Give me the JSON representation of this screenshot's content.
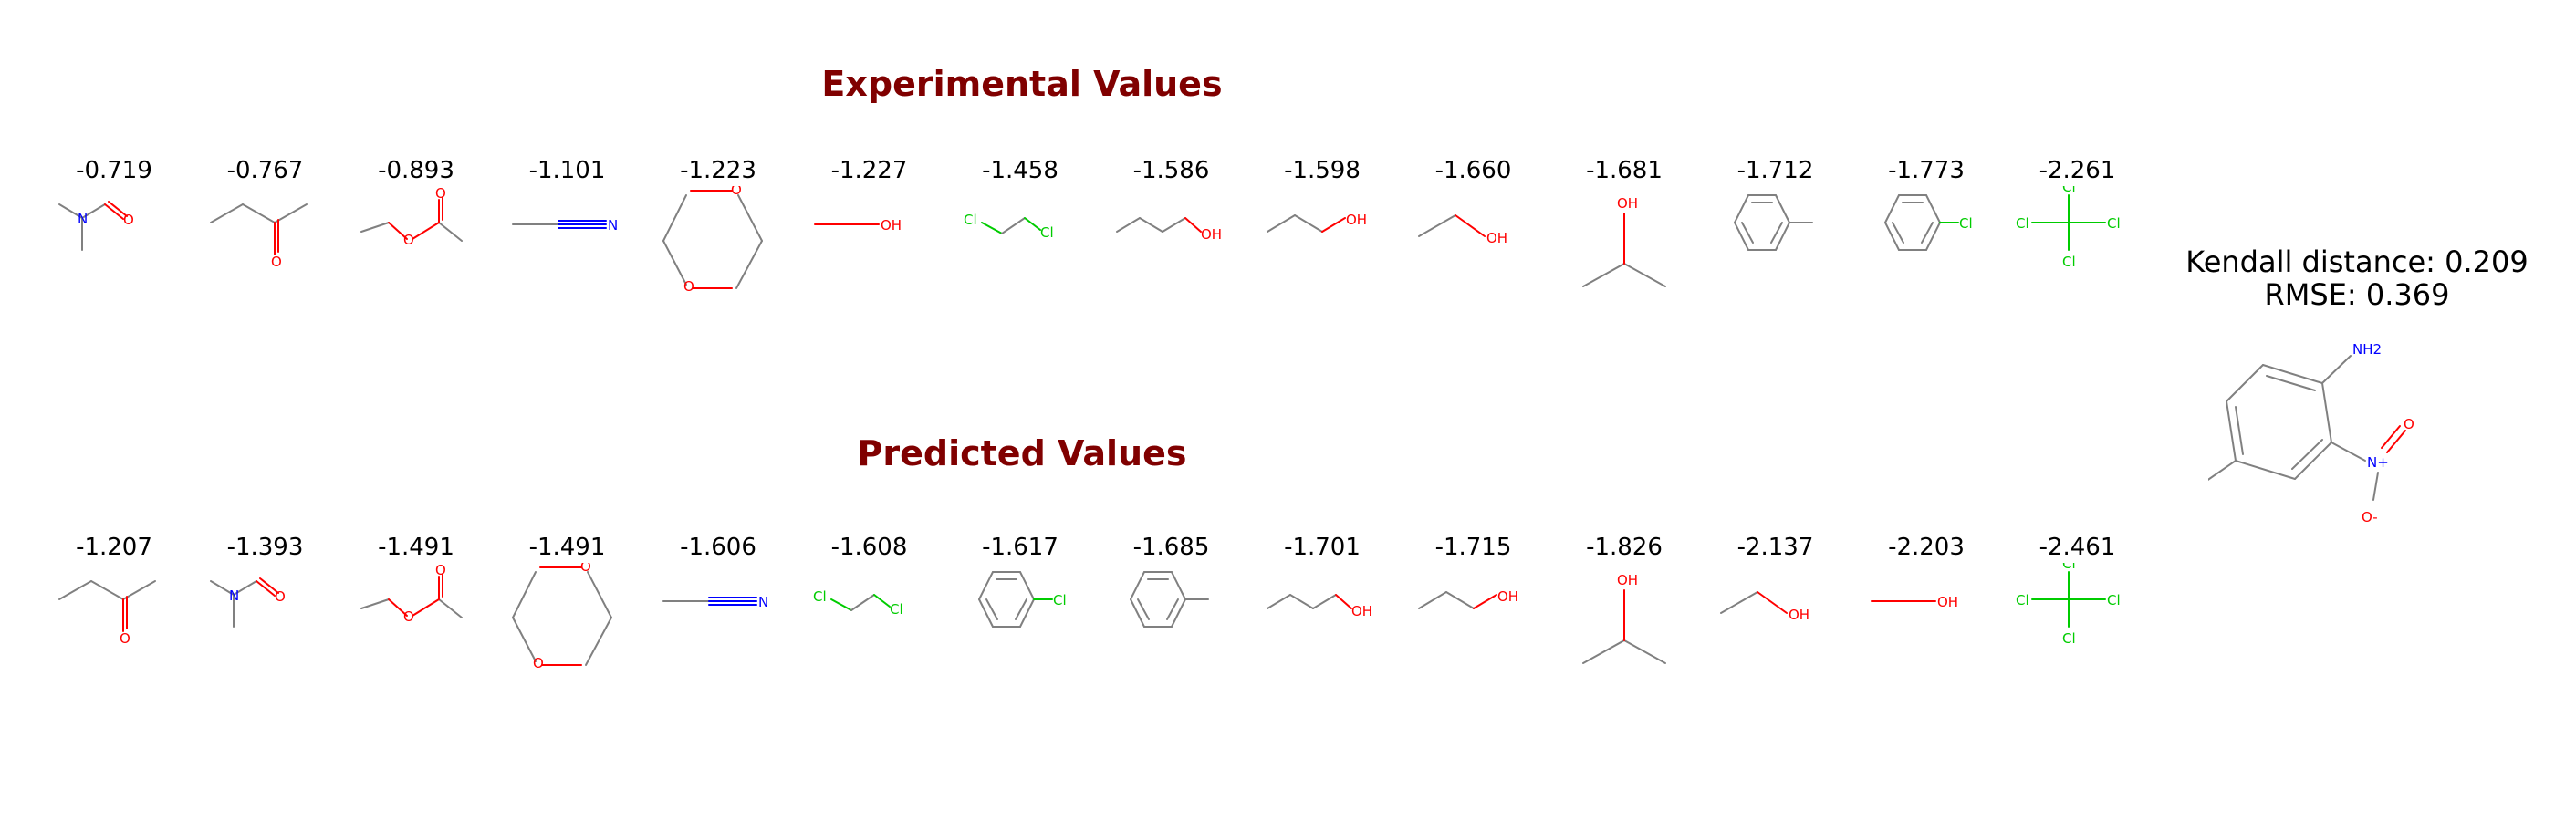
{
  "headings": {
    "experimental": "Experimental Values",
    "predicted": "Predicted Values"
  },
  "metrics": {
    "kendall": "Kendall distance: 0.209",
    "rmse": "RMSE: 0.369"
  },
  "colors": {
    "heading": "#800000",
    "bond": "#808080",
    "oxygen": "#ff0000",
    "nitrogen": "#0000ff",
    "chlorine": "#00cc00"
  },
  "experimental": [
    {
      "value": "-0.719",
      "molecule": "N,N-dimethylformamide"
    },
    {
      "value": "-0.767",
      "molecule": "butanone"
    },
    {
      "value": "-0.893",
      "molecule": "ethyl acetate"
    },
    {
      "value": "-1.101",
      "molecule": "acetonitrile"
    },
    {
      "value": "-1.223",
      "molecule": "1,4-dioxane"
    },
    {
      "value": "-1.227",
      "molecule": "methanol"
    },
    {
      "value": "-1.458",
      "molecule": "1,2-dichloroethane"
    },
    {
      "value": "-1.586",
      "molecule": "1-butanol"
    },
    {
      "value": "-1.598",
      "molecule": "1-propanol"
    },
    {
      "value": "-1.660",
      "molecule": "ethanol"
    },
    {
      "value": "-1.681",
      "molecule": "isopropanol"
    },
    {
      "value": "-1.712",
      "molecule": "toluene"
    },
    {
      "value": "-1.773",
      "molecule": "chlorobenzene"
    },
    {
      "value": "-2.261",
      "molecule": "carbon tetrachloride"
    }
  ],
  "predicted": [
    {
      "value": "-1.207",
      "molecule": "butanone"
    },
    {
      "value": "-1.393",
      "molecule": "N,N-dimethylformamide"
    },
    {
      "value": "-1.491",
      "molecule": "ethyl acetate"
    },
    {
      "value": "-1.491",
      "molecule": "1,4-dioxane"
    },
    {
      "value": "-1.606",
      "molecule": "acetonitrile"
    },
    {
      "value": "-1.608",
      "molecule": "1,2-dichloroethane"
    },
    {
      "value": "-1.617",
      "molecule": "chlorobenzene"
    },
    {
      "value": "-1.685",
      "molecule": "toluene"
    },
    {
      "value": "-1.701",
      "molecule": "1-butanol"
    },
    {
      "value": "-1.715",
      "molecule": "1-propanol"
    },
    {
      "value": "-1.826",
      "molecule": "isopropanol"
    },
    {
      "value": "-2.137",
      "molecule": "ethanol"
    },
    {
      "value": "-2.203",
      "molecule": "methanol"
    },
    {
      "value": "-2.461",
      "molecule": "carbon tetrachloride"
    }
  ],
  "solute": {
    "molecule": "4-methyl-2-nitroaniline",
    "labels": {
      "amine": "NH2",
      "nitrogen": "N+",
      "oxygen": "O",
      "oxide": "O-"
    }
  }
}
